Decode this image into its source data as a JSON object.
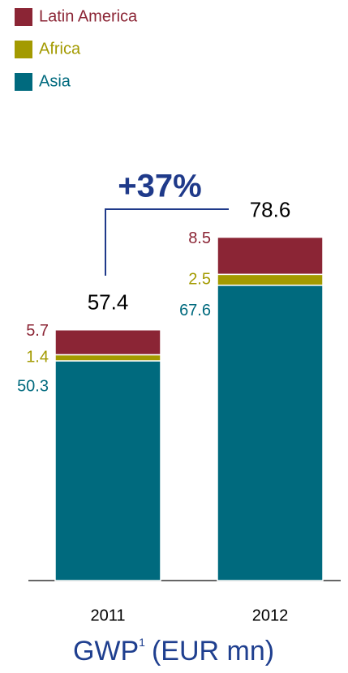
{
  "chart_data": {
    "type": "stacked_bar",
    "title": "GWP",
    "title_footnote": "1",
    "title_unit": "(EUR mn)",
    "categories": [
      "2011",
      "2012"
    ],
    "series": [
      {
        "name": "Latin America",
        "color": "#8b2535",
        "values": [
          5.7,
          8.5
        ]
      },
      {
        "name": "Africa",
        "color": "#a39a00",
        "values": [
          1.4,
          2.5
        ]
      },
      {
        "name": "Asia",
        "color": "#006a7e",
        "values": [
          50.3,
          67.6
        ]
      }
    ],
    "totals": [
      57.4,
      78.6
    ],
    "annotation": "+37%",
    "ylim": [
      0,
      80
    ],
    "legend": "top-left"
  }
}
